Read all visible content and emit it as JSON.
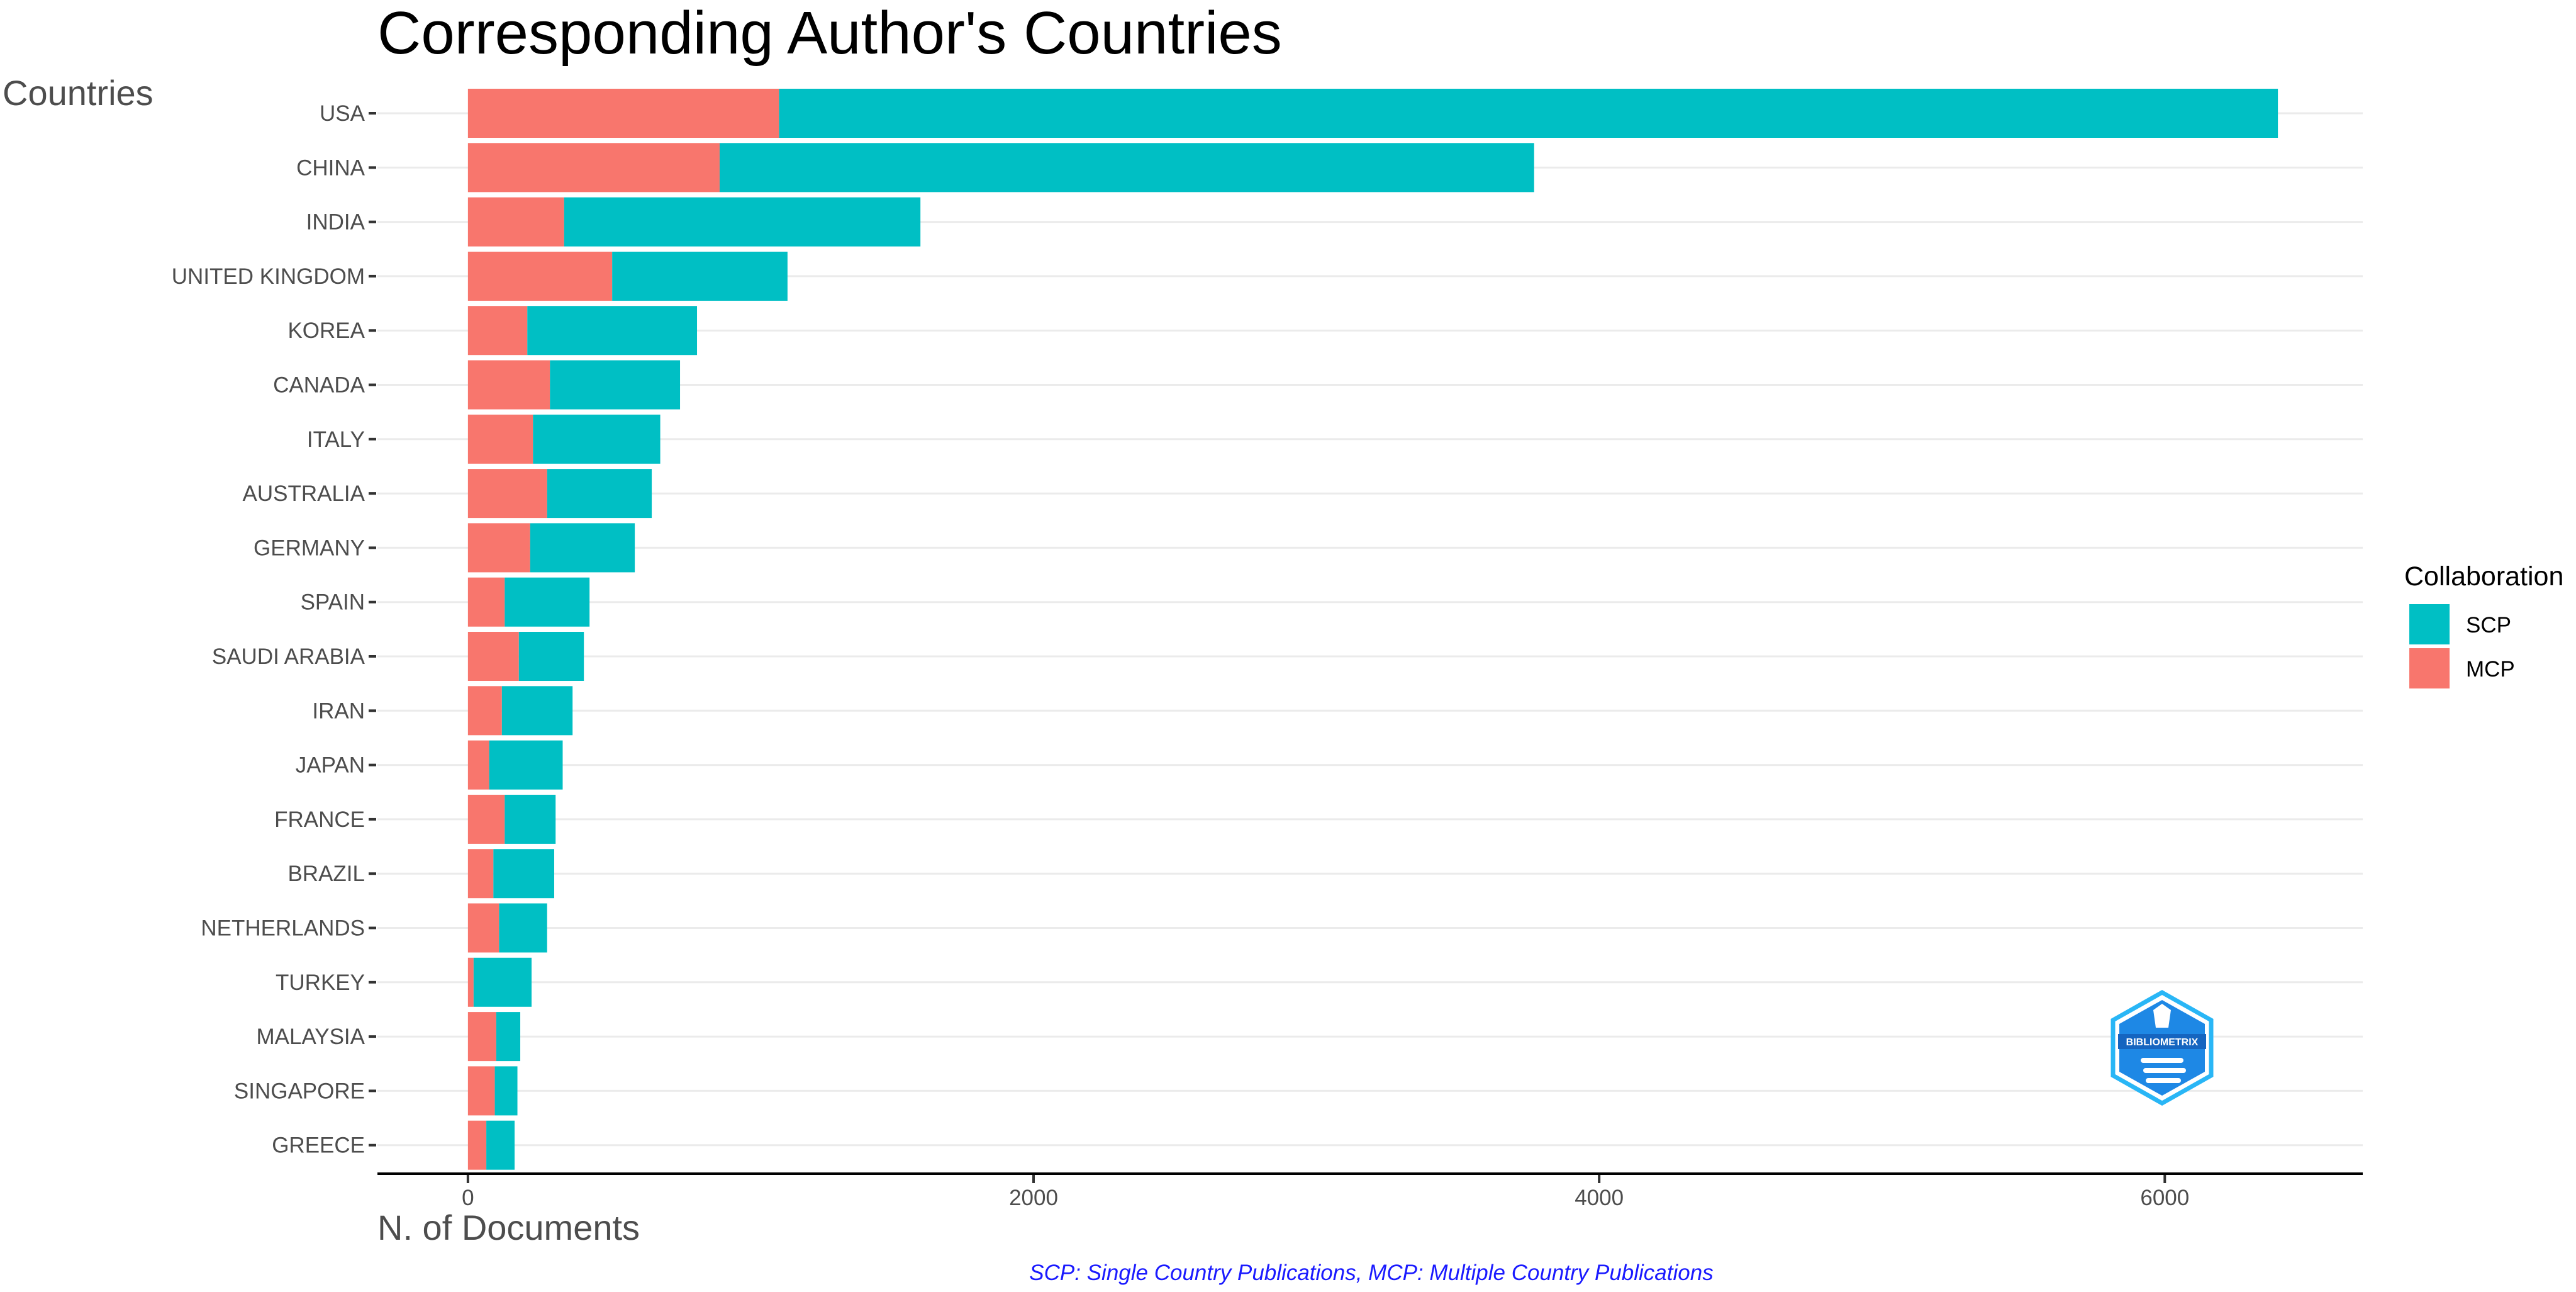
{
  "chart_data": {
    "type": "bar",
    "orientation": "horizontal",
    "stacked": true,
    "title": "Corresponding Author's Countries",
    "ylabel": "Countries",
    "xlabel": "N. of Documents",
    "caption": "SCP: Single Country Publications, MCP: Multiple Country Publications",
    "categories": [
      "USA",
      "CHINA",
      "INDIA",
      "UNITED KINGDOM",
      "KOREA",
      "CANADA",
      "ITALY",
      "AUSTRALIA",
      "GERMANY",
      "SPAIN",
      "SAUDI ARABIA",
      "IRAN",
      "JAPAN",
      "FRANCE",
      "BRAZIL",
      "NETHERLANDS",
      "TURKEY",
      "MALAYSIA",
      "SINGAPORE",
      "GREECE"
    ],
    "series": [
      {
        "name": "MCP",
        "color": "#F8766D",
        "values": [
          1100,
          890,
          340,
          510,
          210,
          290,
          230,
          280,
          220,
          130,
          180,
          120,
          75,
          130,
          90,
          110,
          20,
          100,
          95,
          65
        ]
      },
      {
        "name": "SCP",
        "color": "#00BFC4",
        "values": [
          5300,
          2880,
          1260,
          620,
          600,
          460,
          450,
          370,
          370,
          300,
          230,
          250,
          260,
          180,
          215,
          170,
          205,
          85,
          80,
          100
        ]
      }
    ],
    "xlim": [
      -320,
      6700
    ],
    "xticks": [
      "0",
      "2000",
      "4000",
      "6000"
    ],
    "xtick_values": [
      0,
      2000,
      4000,
      6000
    ],
    "grid": "horizontal major lines",
    "legend": {
      "title": "Collaboration",
      "position": "right",
      "entries": [
        {
          "label": "SCP",
          "color": "#00BFC4"
        },
        {
          "label": "MCP",
          "color": "#F8766D"
        }
      ]
    }
  },
  "logo": {
    "text": "BIBLIOMETRIX",
    "color": "#1E88E5"
  }
}
